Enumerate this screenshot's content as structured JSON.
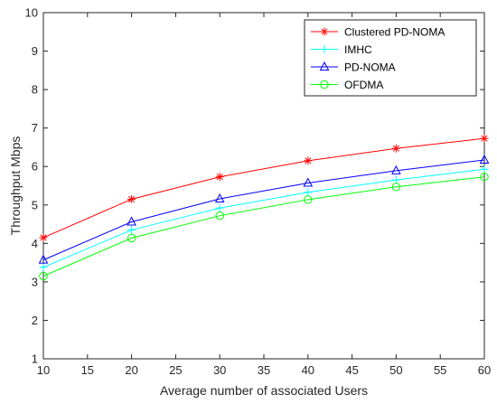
{
  "chart_data": {
    "type": "line",
    "title": "",
    "xlabel": "Average number of associated Users",
    "ylabel": "Throughput Mbps",
    "xlim": [
      10,
      60
    ],
    "ylim": [
      1,
      10
    ],
    "xticks": [
      10,
      15,
      20,
      25,
      30,
      35,
      40,
      45,
      50,
      55,
      60
    ],
    "yticks": [
      1,
      2,
      3,
      4,
      5,
      6,
      7,
      8,
      9,
      10
    ],
    "grid": false,
    "legend_position": "top-right",
    "x": [
      10,
      20,
      30,
      40,
      50,
      60
    ],
    "series": [
      {
        "name": "Clustered PD-NOMA",
        "values": [
          4.15,
          5.15,
          5.73,
          6.15,
          6.47,
          6.73
        ],
        "color": "#ff0000",
        "marker": "asterisk"
      },
      {
        "name": "IMHC",
        "values": [
          3.38,
          4.35,
          4.92,
          5.33,
          5.65,
          5.93
        ],
        "color": "#00ffff",
        "marker": "plus"
      },
      {
        "name": "PD-NOMA",
        "values": [
          3.57,
          4.56,
          5.16,
          5.57,
          5.89,
          6.17
        ],
        "color": "#0000ff",
        "marker": "triangle"
      },
      {
        "name": "OFDMA",
        "values": [
          3.15,
          4.14,
          4.72,
          5.14,
          5.47,
          5.73
        ],
        "color": "#00ff00",
        "marker": "circle"
      }
    ]
  }
}
